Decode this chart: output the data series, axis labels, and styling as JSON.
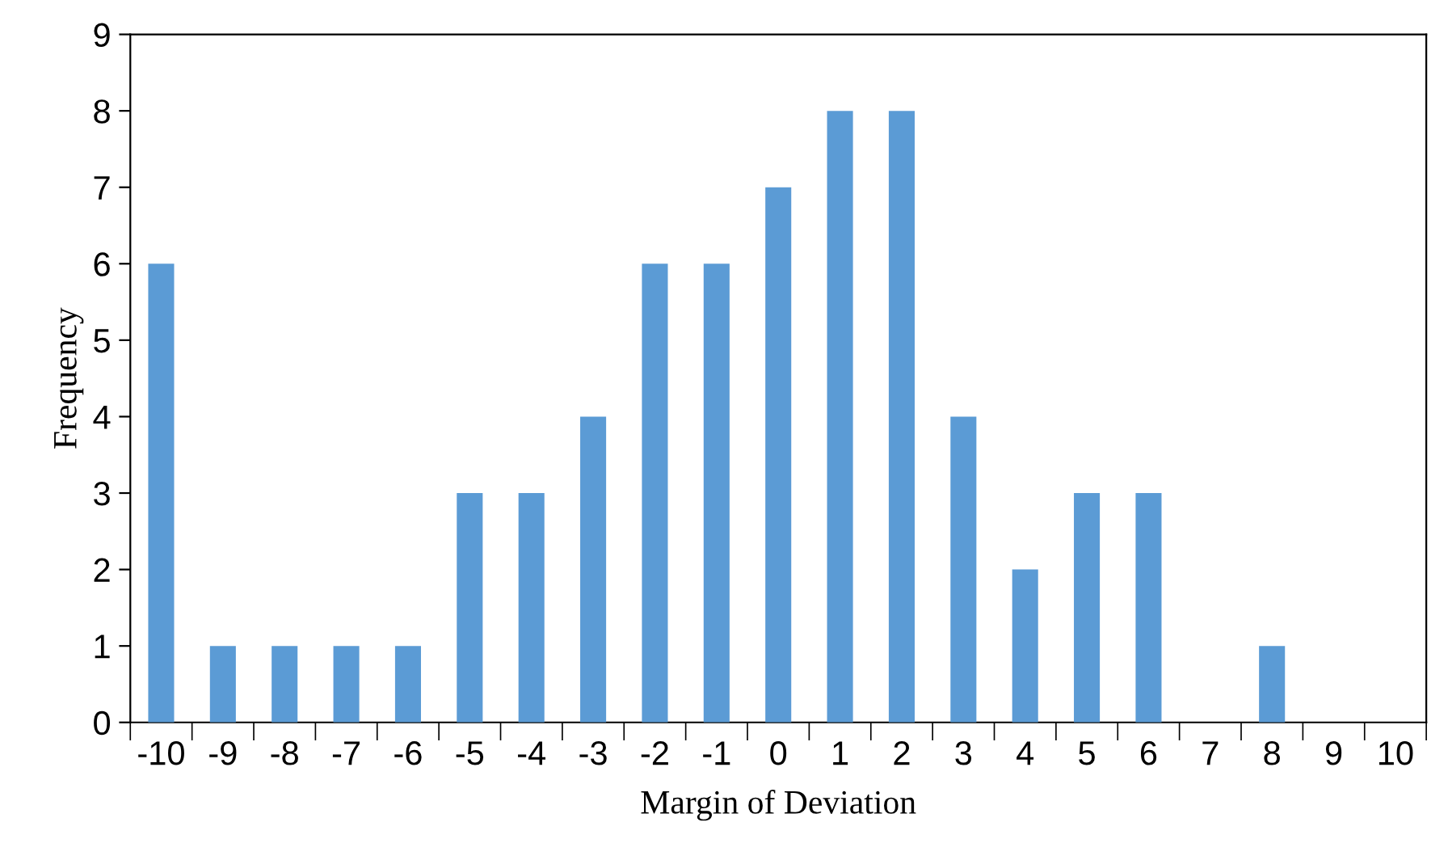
{
  "chart_data": {
    "type": "bar",
    "xlabel": "Margin of Deviation",
    "ylabel": "Frequency",
    "categories": [
      "-10",
      "-9",
      "-8",
      "-7",
      "-6",
      "-5",
      "-4",
      "-3",
      "-2",
      "-1",
      "0",
      "1",
      "2",
      "3",
      "4",
      "5",
      "6",
      "7",
      "8",
      "9",
      "10"
    ],
    "values": [
      6,
      1,
      1,
      1,
      1,
      3,
      3,
      4,
      6,
      6,
      7,
      8,
      8,
      4,
      2,
      3,
      3,
      0,
      1,
      0,
      0
    ],
    "color": "#5b9bd5",
    "ylim": [
      0,
      9
    ],
    "yticks": [
      0,
      1,
      2,
      3,
      4,
      5,
      6,
      7,
      8,
      9
    ],
    "grid": false,
    "legend": false
  }
}
